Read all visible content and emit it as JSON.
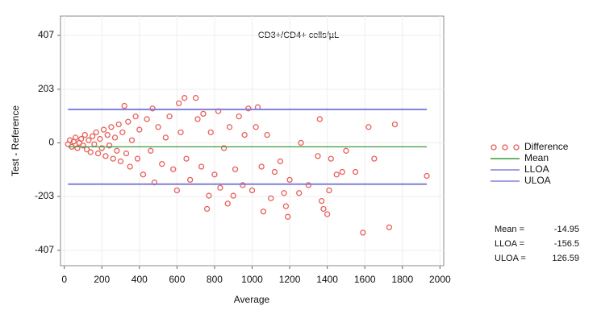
{
  "chart_data": {
    "type": "scatter",
    "annotation": "CD3+/CD4+ cells/µL",
    "xlabel": "Average",
    "ylabel": "Test - Reference",
    "xlim": [
      -20,
      2020
    ],
    "ylim": [
      -465,
      480
    ],
    "xticks": [
      0,
      200,
      400,
      600,
      800,
      1000,
      1200,
      1400,
      1600,
      1800,
      2000
    ],
    "yticks": [
      407,
      203,
      0,
      -203,
      -407
    ],
    "grid": true,
    "legend": "right",
    "series": [
      {
        "name": "Difference",
        "color": "#e8605a",
        "x": [
          20,
          30,
          40,
          50,
          60,
          70,
          80,
          90,
          100,
          110,
          120,
          130,
          140,
          150,
          160,
          170,
          180,
          190,
          200,
          210,
          220,
          230,
          240,
          250,
          260,
          270,
          280,
          290,
          300,
          310,
          320,
          330,
          340,
          350,
          360,
          380,
          390,
          400,
          420,
          440,
          460,
          470,
          480,
          500,
          520,
          540,
          560,
          580,
          600,
          610,
          620,
          640,
          650,
          670,
          700,
          710,
          730,
          740,
          760,
          770,
          780,
          800,
          820,
          830,
          850,
          870,
          880,
          900,
          910,
          930,
          950,
          960,
          980,
          1000,
          1020,
          1030,
          1050,
          1060,
          1080,
          1100,
          1120,
          1150,
          1170,
          1180,
          1190,
          1200,
          1250,
          1260,
          1300,
          1350,
          1360,
          1370,
          1380,
          1400,
          1410,
          1420,
          1450,
          1480,
          1500,
          1550,
          1590,
          1620,
          1650,
          1730,
          1760,
          1930
        ],
        "values": [
          -5,
          10,
          -15,
          5,
          20,
          -20,
          0,
          15,
          -10,
          30,
          -25,
          10,
          -35,
          25,
          -5,
          40,
          -40,
          15,
          -20,
          50,
          -50,
          30,
          -10,
          60,
          -60,
          20,
          -30,
          70,
          -70,
          40,
          140,
          -40,
          80,
          -90,
          10,
          100,
          -60,
          50,
          -120,
          90,
          -30,
          130,
          -150,
          60,
          -80,
          20,
          100,
          -100,
          -180,
          150,
          40,
          170,
          -60,
          -140,
          170,
          90,
          -90,
          110,
          -250,
          -200,
          40,
          -120,
          120,
          -170,
          -20,
          -230,
          60,
          -200,
          -100,
          100,
          -160,
          30,
          130,
          -180,
          60,
          135,
          -90,
          -260,
          30,
          -210,
          -110,
          -70,
          -190,
          -240,
          -280,
          -140,
          -190,
          0,
          -160,
          -50,
          90,
          -220,
          -250,
          -270,
          -180,
          -60,
          -120,
          -110,
          -30,
          -110,
          -340,
          60,
          -60,
          -320,
          70,
          -125
        ]
      }
    ],
    "hlines": [
      {
        "name": "Mean",
        "value": -14.95,
        "color": "#3a9a3a"
      },
      {
        "name": "LLOA",
        "value": -156.5,
        "color": "#8080d8"
      },
      {
        "name": "ULOA",
        "value": 126.59,
        "color": "#8080d8"
      }
    ],
    "stats_labels": [
      "Mean =",
      "LLOA =",
      "ULOA ="
    ]
  }
}
